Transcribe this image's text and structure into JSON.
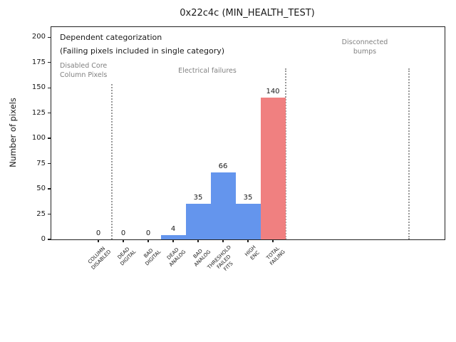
{
  "chart_data": {
    "type": "bar",
    "title": "0x22c4c (MIN_HEALTH_TEST)",
    "ylabel": "Number of pixels",
    "xlabel": "",
    "ylim": [
      0,
      210
    ],
    "yticks": [
      0,
      25,
      50,
      75,
      100,
      125,
      150,
      175,
      200
    ],
    "categories": [
      "COLUMN\nDISABLED",
      "DEAD\nDIGITAL",
      "BAD\nDIGITAL",
      "DEAD\nANALOG",
      "BAD\nANALOG",
      "THRESHOLD\nFAILED\nFITS",
      "HIGH\nENC",
      "TOTAL\nFAILING"
    ],
    "values": [
      0,
      0,
      0,
      4,
      35,
      66,
      35,
      140
    ],
    "bar_labels": [
      "0",
      "0",
      "0",
      "4",
      "35",
      "66",
      "35",
      "140"
    ],
    "bar_colors": [
      "#6495ED",
      "#6495ED",
      "#6495ED",
      "#6495ED",
      "#6495ED",
      "#6495ED",
      "#6495ED",
      "#F08080"
    ],
    "grid": false,
    "legend": null,
    "dividers_x": [
      0.55,
      7.5,
      12.45
    ],
    "colors": {
      "default_bar": "#6495ED",
      "total_failing_bar": "#F08080",
      "section_text_gray": "#808080",
      "divider_gray": "#999999"
    },
    "annotations": {
      "note_line1": "Dependent categorization",
      "note_line2": "(Failing pixels included in single category)",
      "section_labels": [
        "Disabled Core\nColumn Pixels",
        "Electrical failures",
        "Disconnected\nbumps"
      ]
    }
  }
}
